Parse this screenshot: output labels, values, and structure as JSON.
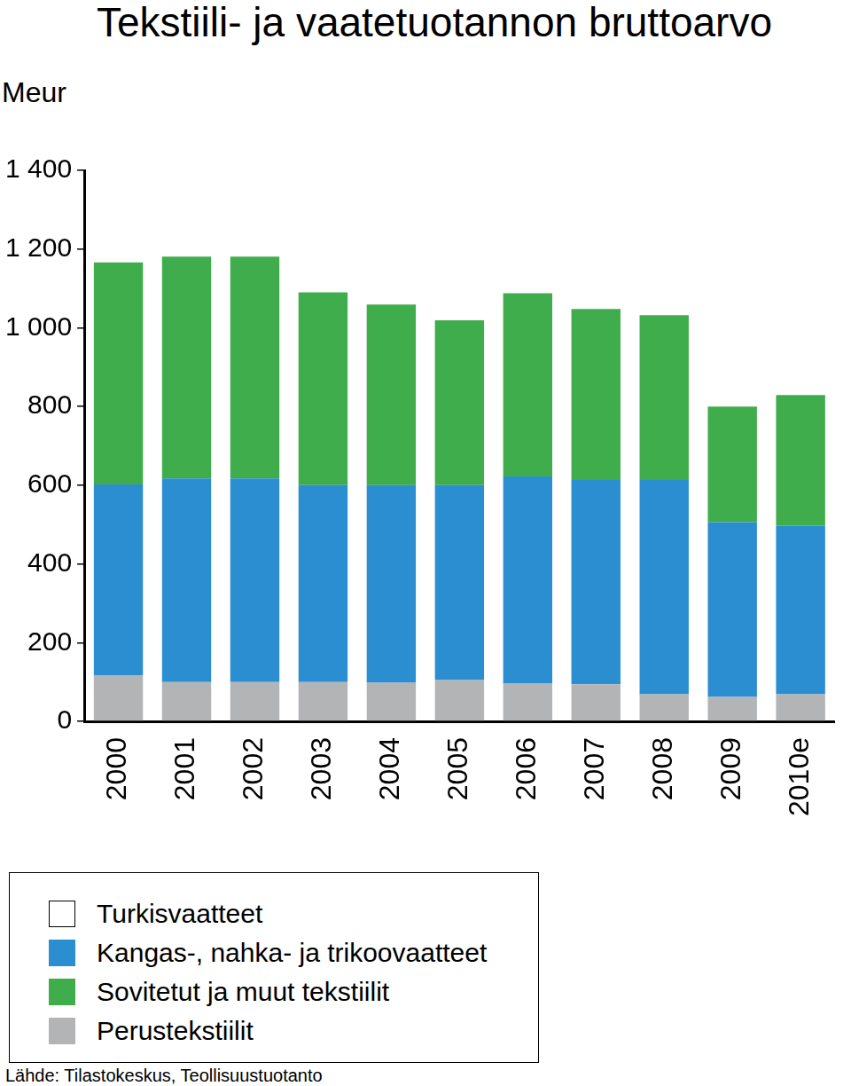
{
  "chart_data": {
    "type": "bar",
    "title": "Tekstiili- ja vaatetuotannon bruttoarvo",
    "y_label": "Meur",
    "source": "Lähde: Tilastokeskus, Teollisuustuotanto",
    "categories": [
      "2000",
      "2001",
      "2002",
      "2003",
      "2004",
      "2005",
      "2006",
      "2007",
      "2008",
      "2009",
      "2010e"
    ],
    "stacked": true,
    "grid": false,
    "legend": "bottom-left",
    "series": [
      {
        "name": "Perustekstiilit",
        "color": "#b3b4b6",
        "values": [
          116,
          100,
          100,
          100,
          98,
          105,
          96,
          94,
          69,
          62,
          69
        ]
      },
      {
        "name": "Kangas-, nahka- ja trikoovaatteet",
        "color": "#2b8ed1",
        "values": [
          486,
          517,
          517,
          500,
          502,
          495,
          526,
          519,
          544,
          444,
          428
        ]
      },
      {
        "name": "Sovitetut ja muut tekstiilit",
        "color": "#3fad4c",
        "values": [
          564,
          564,
          564,
          490,
          459,
          419,
          466,
          435,
          419,
          294,
          332
        ]
      },
      {
        "name": "Turkisvaatteet",
        "color": "#ffffff",
        "values": [
          0,
          0,
          0,
          0,
          0,
          0,
          0,
          0,
          0,
          0,
          0
        ]
      }
    ],
    "ylim": [
      0,
      1400
    ],
    "yticks": [
      0,
      200,
      400,
      600,
      800,
      {
        "value": 1000,
        "label": "1 000"
      },
      {
        "value": 1200,
        "label": "1 200"
      },
      {
        "value": 1400,
        "label": "1 400"
      }
    ]
  }
}
